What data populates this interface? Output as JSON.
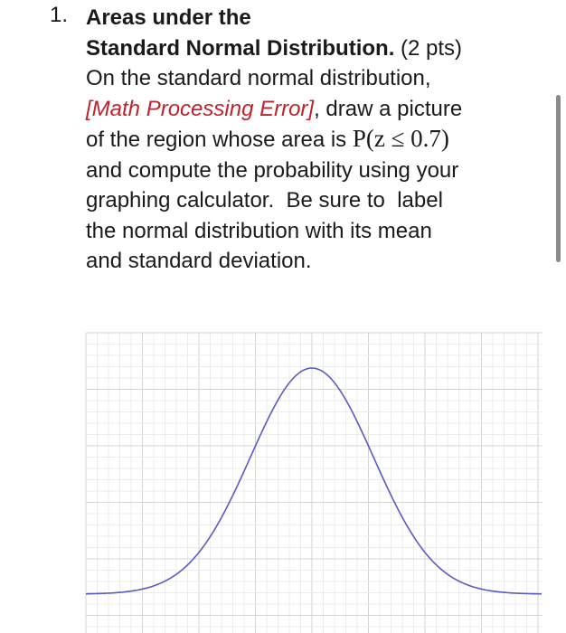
{
  "problem": {
    "number": "1.",
    "title_line1": "Areas under the",
    "title_line2": "Standard Normal Distribution.",
    "points": "(2 pts)",
    "lines": [
      "On the standard normal distribution,",
      "[Math Processing Error]",
      ", draw a picture",
      "of the region whose area is",
      "P(z ≤ 0.7)",
      "and compute the probability using your",
      "graphing calculator.  Be sure to  label",
      "the normal distribution with its mean",
      "and standard deviation."
    ]
  }
}
